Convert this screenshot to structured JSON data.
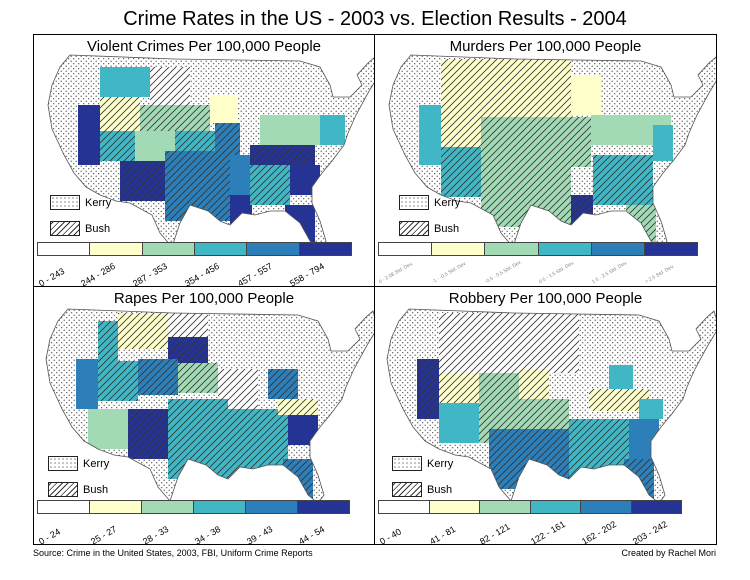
{
  "title": "Crime Rates in the US - 2003 vs. Election Results - 2004",
  "key": {
    "kerry_label": "Kerry",
    "bush_label": "Bush"
  },
  "colors": {
    "class1": "#ffffff",
    "class2": "#ffffcc",
    "class3": "#a1dab4",
    "class4": "#41b6c4",
    "class5": "#2c7fb8",
    "class6": "#253494"
  },
  "panels": [
    {
      "id": "violent",
      "title": "Violent Crimes Per 100,000 People",
      "legend": [
        "0 - 243",
        "244 - 286",
        "287 - 353",
        "354 - 456",
        "457 - 557",
        "558 - 794"
      ]
    },
    {
      "id": "murders",
      "title": "Murders Per 100,000 People",
      "legend": [
        "0 - 2.08 Std. Dev.",
        "-1 - -0.5 Std. Dev.",
        "-0.5 - 0.5 Std. Dev.",
        "0.5 - 1.5 Std. Dev.",
        "1.5 - 2.5 Std. Dev.",
        "> 2.5 Std. Dev."
      ]
    },
    {
      "id": "rapes",
      "title": "Rapes Per 100,000 People",
      "legend": [
        "0 - 24",
        "25 - 27",
        "28 - 33",
        "34 - 38",
        "39 - 43",
        "44 - 54"
      ]
    },
    {
      "id": "robbery",
      "title": "Robbery Per 100,000 People",
      "legend": [
        "0 - 40",
        "41 - 81",
        "82 - 121",
        "122 - 161",
        "162 - 202",
        "203 - 242"
      ]
    }
  ],
  "footer": {
    "source": "Source: Crime in the United States, 2003, FBI, Uniform Crime Reports",
    "credit": "Created by Rachel Mori"
  }
}
